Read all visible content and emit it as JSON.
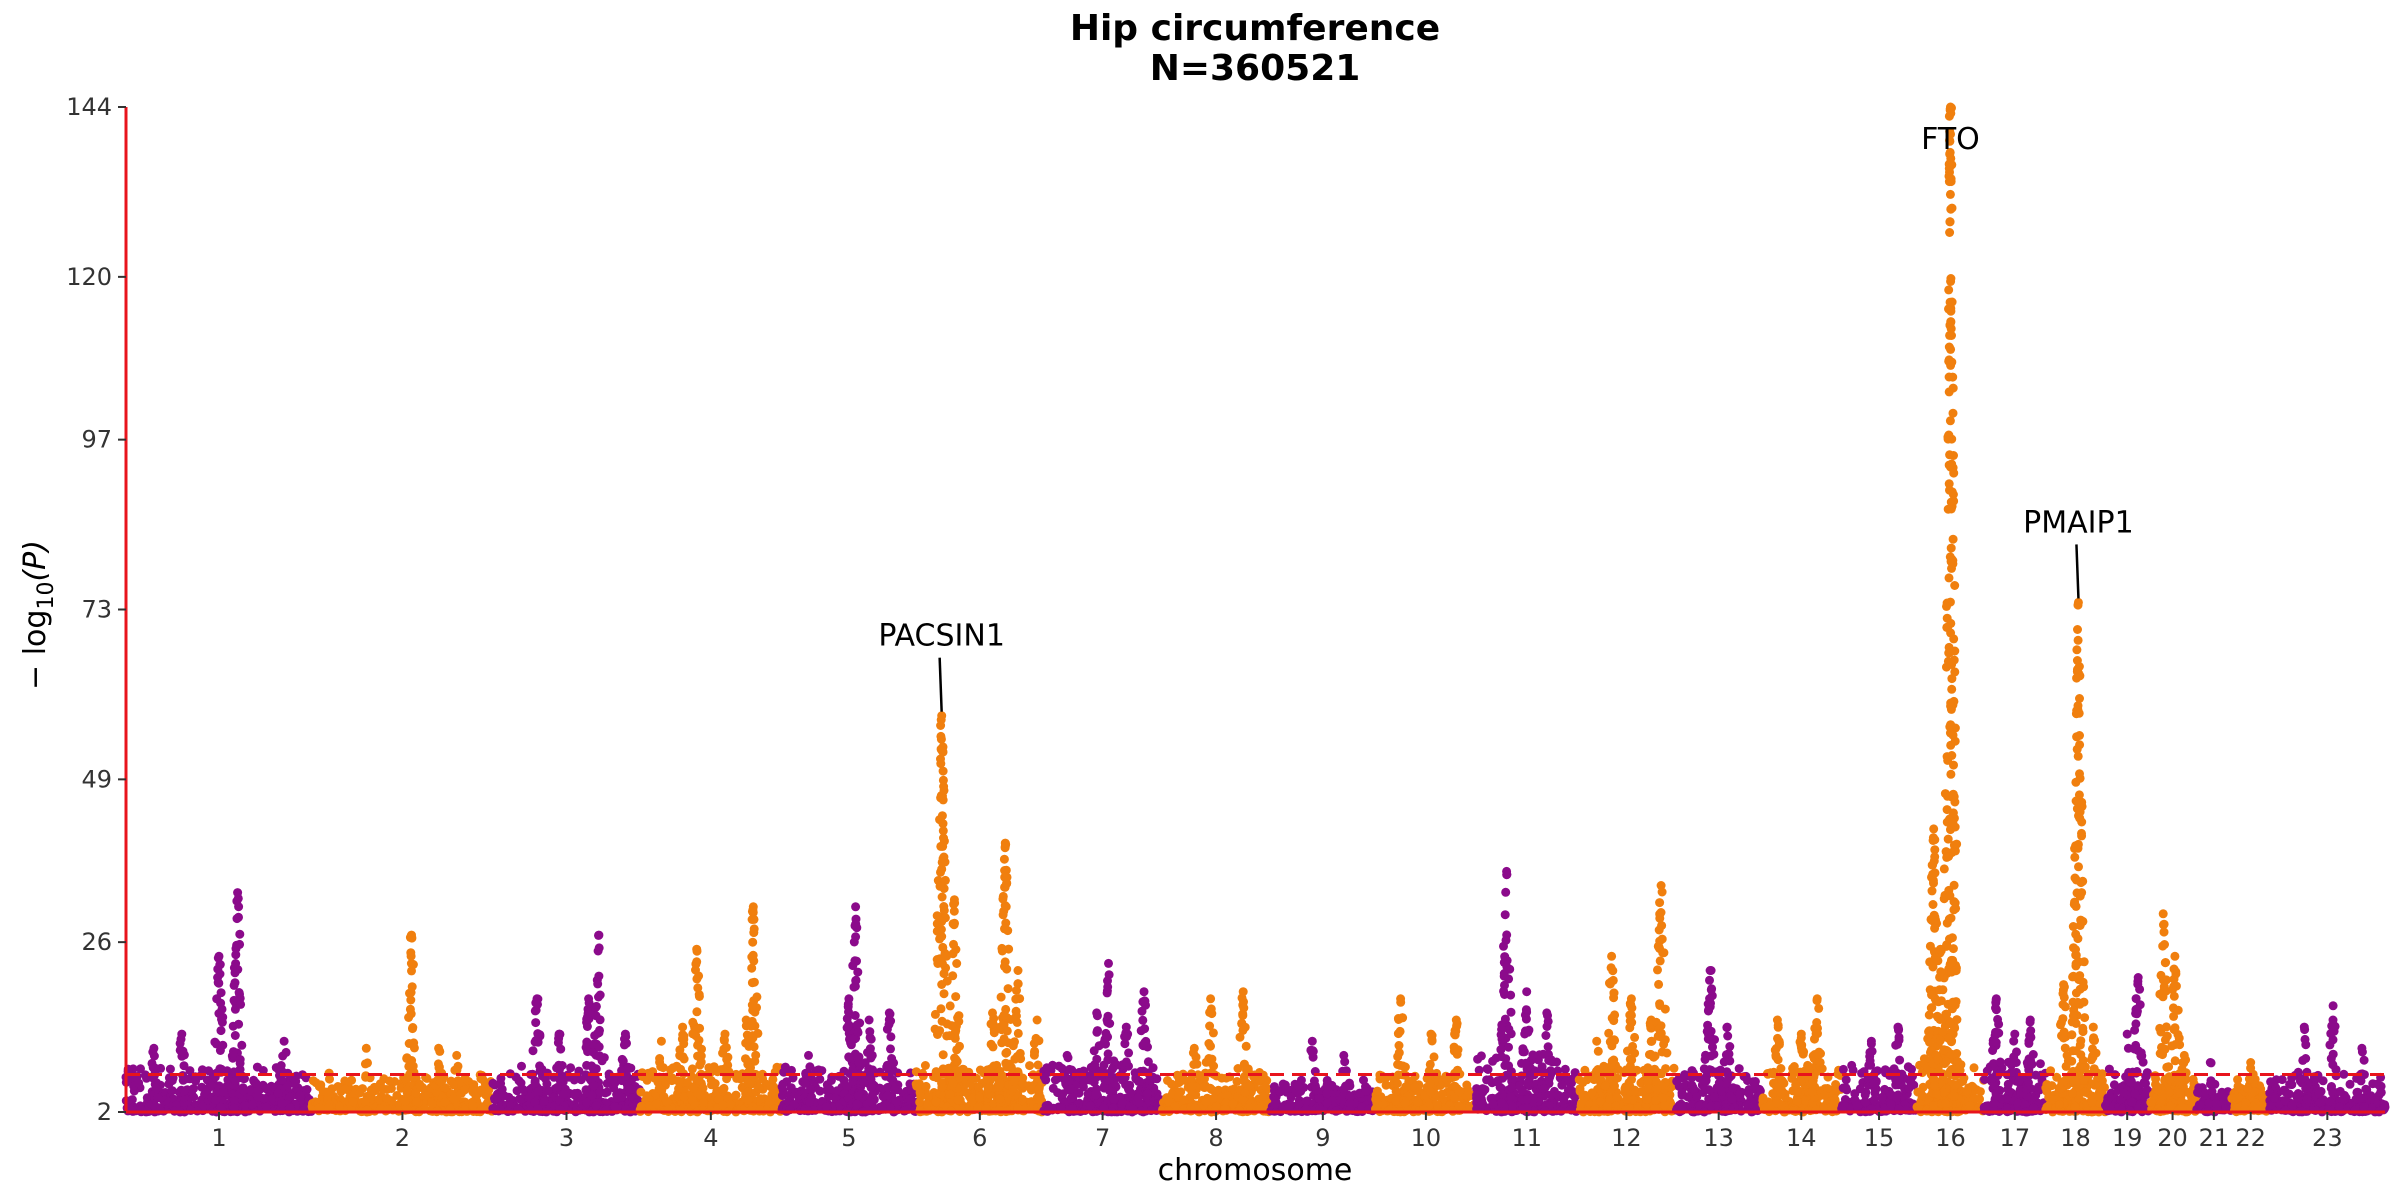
{
  "chart_data": {
    "type": "scatter",
    "subtype": "manhattan",
    "title": "Hip circumference",
    "subtitle": "N=360521",
    "xlabel": "chromosome",
    "ylabel_main": "− log",
    "ylabel_sub": "10",
    "ylabel_arg": "(P)",
    "ylim": [
      2,
      144
    ],
    "y_ticks": [
      "2",
      "26",
      "49",
      "73",
      "97",
      "120",
      "144"
    ],
    "y_tick_values": [
      2,
      26,
      49,
      73,
      97,
      120,
      144
    ],
    "threshold": 7.3,
    "threshold_color": "#e8141c",
    "axis_color": "#e8141c",
    "colors": {
      "odd": "#8b0a8b",
      "even": "#f07f0e"
    },
    "grid": false,
    "chromosomes": [
      {
        "label": "1",
        "color": "odd",
        "base": 8,
        "peaks": [
          [
            0.15,
            11
          ],
          [
            0.3,
            13
          ],
          [
            0.5,
            24
          ],
          [
            0.6,
            33
          ],
          [
            0.85,
            12
          ]
        ]
      },
      {
        "label": "2",
        "color": "even",
        "base": 7,
        "peaks": [
          [
            0.3,
            11
          ],
          [
            0.55,
            27
          ],
          [
            0.7,
            11
          ],
          [
            0.8,
            10
          ]
        ]
      },
      {
        "label": "3",
        "color": "odd",
        "base": 8,
        "peaks": [
          [
            0.3,
            18
          ],
          [
            0.45,
            13
          ],
          [
            0.65,
            18
          ],
          [
            0.72,
            27
          ],
          [
            0.9,
            13
          ]
        ]
      },
      {
        "label": "4",
        "color": "even",
        "base": 8,
        "peaks": [
          [
            0.15,
            12
          ],
          [
            0.3,
            14
          ],
          [
            0.4,
            25
          ],
          [
            0.6,
            13
          ],
          [
            0.75,
            15
          ],
          [
            0.8,
            31
          ]
        ]
      },
      {
        "label": "5",
        "color": "odd",
        "base": 8,
        "peaks": [
          [
            0.2,
            10
          ],
          [
            0.5,
            18
          ],
          [
            0.55,
            31
          ],
          [
            0.65,
            15
          ],
          [
            0.8,
            16
          ]
        ]
      },
      {
        "label": "6",
        "color": "even",
        "base": 8,
        "peaks": [
          [
            0.2,
            58
          ],
          [
            0.3,
            32
          ],
          [
            0.6,
            16
          ],
          [
            0.7,
            40
          ],
          [
            0.8,
            22
          ],
          [
            0.95,
            15
          ]
        ]
      },
      {
        "label": "7",
        "color": "odd",
        "base": 8,
        "peaks": [
          [
            0.2,
            10
          ],
          [
            0.45,
            16
          ],
          [
            0.55,
            23
          ],
          [
            0.7,
            14
          ],
          [
            0.85,
            19
          ]
        ]
      },
      {
        "label": "8",
        "color": "even",
        "base": 7,
        "peaks": [
          [
            0.3,
            11
          ],
          [
            0.45,
            18
          ],
          [
            0.75,
            19
          ]
        ]
      },
      {
        "label": "9",
        "color": "odd",
        "base": 6,
        "peaks": [
          [
            0.4,
            12
          ],
          [
            0.7,
            10
          ]
        ]
      },
      {
        "label": "10",
        "color": "even",
        "base": 7,
        "peaks": [
          [
            0.25,
            18
          ],
          [
            0.55,
            13
          ],
          [
            0.8,
            15
          ]
        ]
      },
      {
        "label": "11",
        "color": "odd",
        "base": 10,
        "peaks": [
          [
            0.3,
            36
          ],
          [
            0.5,
            19
          ],
          [
            0.7,
            16
          ]
        ]
      },
      {
        "label": "12",
        "color": "even",
        "base": 8,
        "peaks": [
          [
            0.2,
            12
          ],
          [
            0.35,
            24
          ],
          [
            0.55,
            18
          ],
          [
            0.75,
            15
          ],
          [
            0.85,
            34
          ]
        ]
      },
      {
        "label": "13",
        "color": "odd",
        "base": 8,
        "peaks": [
          [
            0.4,
            22
          ],
          [
            0.6,
            14
          ]
        ]
      },
      {
        "label": "14",
        "color": "even",
        "base": 8,
        "peaks": [
          [
            0.2,
            15
          ],
          [
            0.5,
            13
          ],
          [
            0.7,
            18
          ]
        ]
      },
      {
        "label": "15",
        "color": "odd",
        "base": 8,
        "peaks": [
          [
            0.4,
            12
          ],
          [
            0.75,
            14
          ]
        ]
      },
      {
        "label": "16",
        "color": "even",
        "base": 9,
        "peaks": [
          [
            0.25,
            42
          ],
          [
            0.5,
            144
          ],
          [
            0.35,
            25
          ]
        ]
      },
      {
        "label": "17",
        "color": "odd",
        "base": 9,
        "peaks": [
          [
            0.2,
            18
          ],
          [
            0.5,
            13
          ],
          [
            0.75,
            15
          ]
        ]
      },
      {
        "label": "18",
        "color": "even",
        "base": 8,
        "peaks": [
          [
            0.3,
            20
          ],
          [
            0.55,
            74
          ],
          [
            0.8,
            14
          ]
        ]
      },
      {
        "label": "19",
        "color": "odd",
        "base": 8,
        "peaks": [
          [
            0.5,
            13
          ],
          [
            0.75,
            21
          ]
        ]
      },
      {
        "label": "20",
        "color": "even",
        "base": 7,
        "peaks": [
          [
            0.3,
            30
          ],
          [
            0.55,
            24
          ],
          [
            0.75,
            10
          ]
        ]
      },
      {
        "label": "21",
        "color": "odd",
        "base": 6,
        "peaks": [
          [
            0.4,
            9
          ]
        ]
      },
      {
        "label": "22",
        "color": "even",
        "base": 6,
        "peaks": [
          [
            0.5,
            9
          ]
        ]
      },
      {
        "label": "23",
        "color": "odd",
        "base": 7,
        "peaks": [
          [
            0.3,
            14
          ],
          [
            0.55,
            17
          ],
          [
            0.8,
            11
          ]
        ]
      }
    ],
    "annotations": [
      {
        "label": "PACSIN1",
        "chrom_index": 5,
        "pos": 0.2,
        "value": 58
      },
      {
        "label": "FTO",
        "chrom_index": 15,
        "pos": 0.5,
        "value": 144
      },
      {
        "label": "PMAIP1",
        "chrom_index": 17,
        "pos": 0.55,
        "value": 74
      }
    ]
  }
}
